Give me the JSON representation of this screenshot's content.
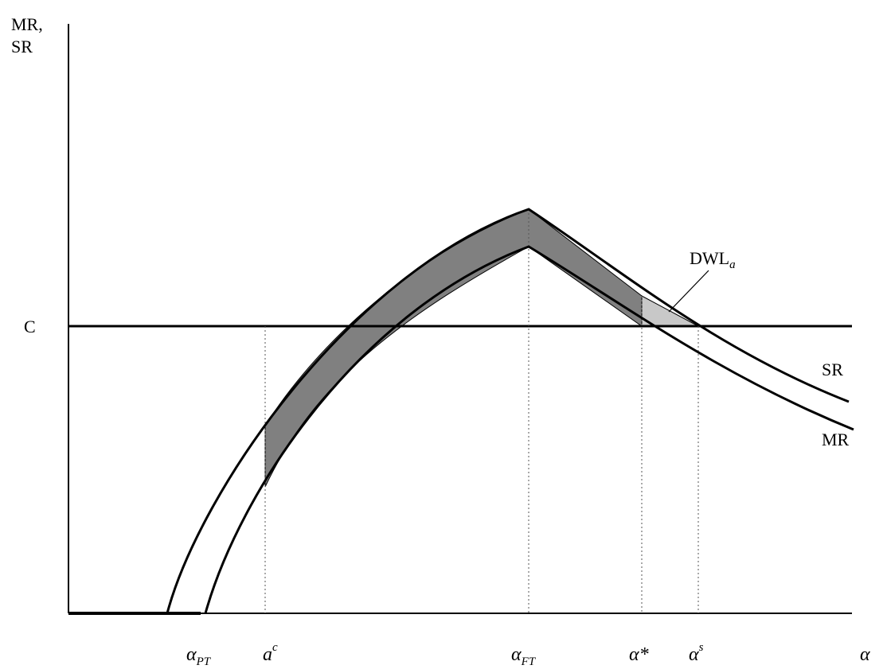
{
  "labels": {
    "y_axis_line1": "MR,",
    "y_axis_line2": "SR",
    "cost_line": "C",
    "sr_curve": "SR",
    "mr_curve": "MR",
    "dwl_main": "DWL",
    "dwl_sub": "a"
  },
  "x_ticks": {
    "alpha_pt": {
      "base": "α",
      "sub": "PT"
    },
    "a_c": {
      "base": "a",
      "sup": "c"
    },
    "alpha_ft": {
      "base": "α",
      "sub": "FT"
    },
    "alpha_star": {
      "base": "α*"
    },
    "alpha_s": {
      "base": "α",
      "sup": "s"
    },
    "alpha_axis": {
      "base": "α"
    }
  },
  "colors": {
    "axis": "#000000",
    "curve": "#000000",
    "dark_region": "#808080",
    "dwl_region": "#c8c8c8",
    "guide": "#555555"
  }
}
